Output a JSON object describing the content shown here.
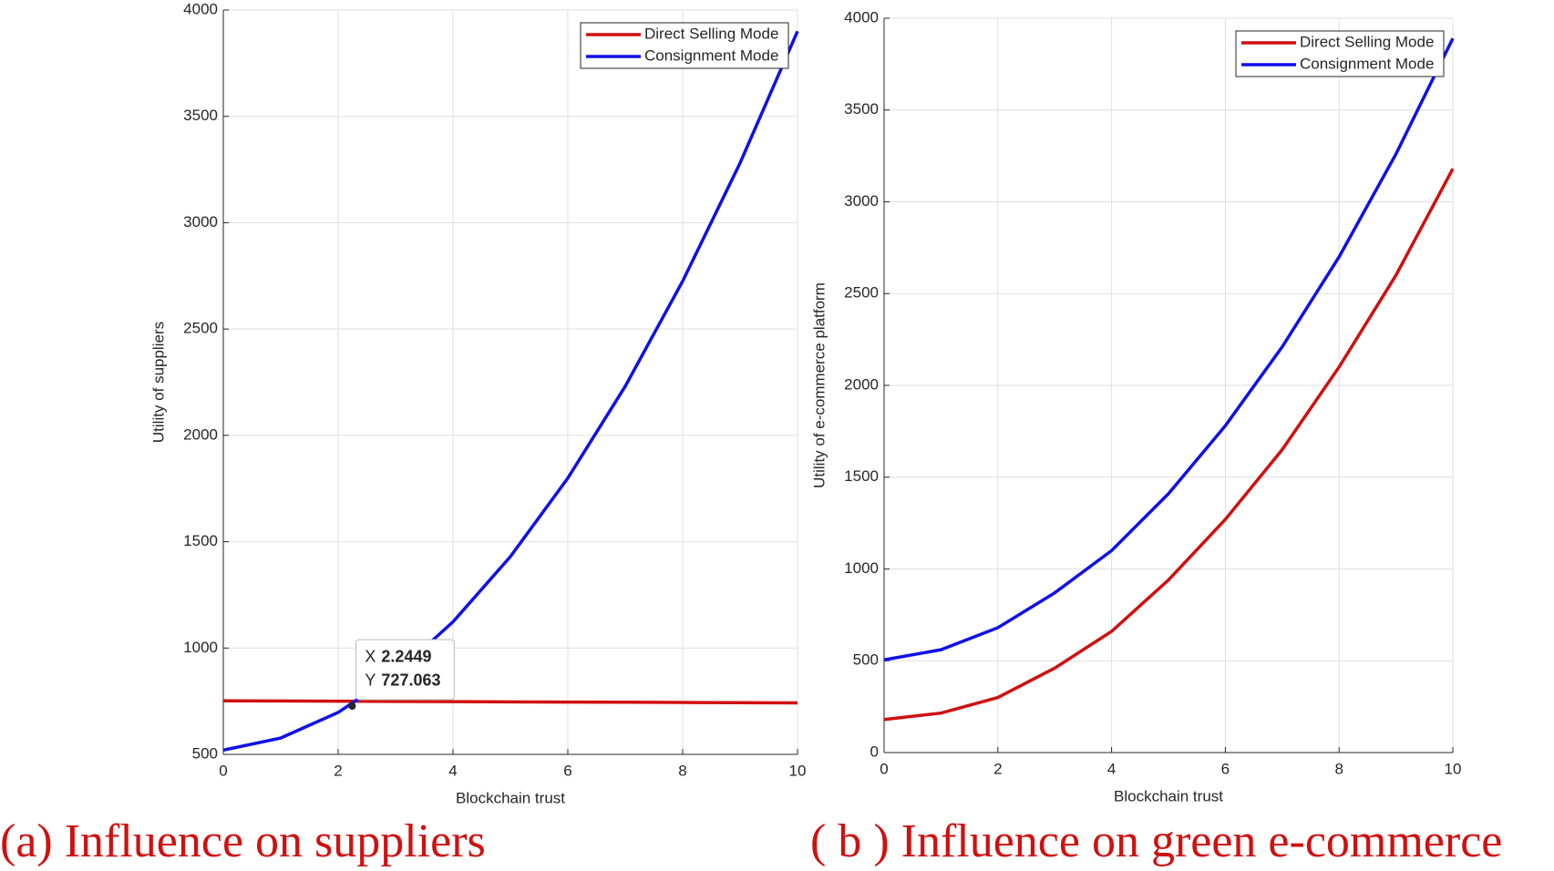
{
  "chart_data": [
    {
      "type": "line",
      "caption": "(a) Influence on suppliers",
      "xlabel": "Blockchain trust",
      "ylabel": "Utility of suppliers",
      "x": [
        0,
        1,
        2,
        3,
        4,
        5,
        6,
        7,
        8,
        9,
        10
      ],
      "series": [
        {
          "name": "Direct Selling Mode",
          "color": "#d01010",
          "values": [
            752,
            751,
            750,
            749,
            748,
            747,
            746,
            745,
            744,
            743,
            742
          ]
        },
        {
          "name": "Consignment Mode",
          "color": "#1010e8",
          "values": [
            520,
            577,
            697,
            879,
            1123,
            1430,
            1799,
            2231,
            2725,
            3281,
            3900
          ]
        }
      ],
      "xlim": [
        0,
        10
      ],
      "xticks": [
        0,
        2,
        4,
        6,
        8,
        10
      ],
      "ylim": [
        500,
        4000
      ],
      "yticks": [
        500,
        1000,
        1500,
        2000,
        2500,
        3000,
        3500,
        4000
      ],
      "grid": true,
      "legend": "upper right",
      "annotation": {
        "x_label": "X",
        "y_label": "Y",
        "x": 2.2449,
        "y": 727.063
      }
    },
    {
      "type": "line",
      "caption": "( b ) Influence on green e-commerce",
      "xlabel": "Blockchain trust",
      "ylabel": "Utility of e-commerce platform",
      "x": [
        0,
        1,
        2,
        3,
        4,
        5,
        6,
        7,
        8,
        9,
        10
      ],
      "series": [
        {
          "name": "Direct Selling Mode",
          "color": "#d01010",
          "values": [
            180,
            215,
            300,
            460,
            660,
            940,
            1270,
            1650,
            2100,
            2600,
            3180
          ]
        },
        {
          "name": "Consignment Mode",
          "color": "#1010e8",
          "values": [
            505,
            560,
            680,
            870,
            1100,
            1410,
            1780,
            2210,
            2700,
            3260,
            3890
          ]
        }
      ],
      "xlim": [
        0,
        10
      ],
      "xticks": [
        0,
        2,
        4,
        6,
        8,
        10
      ],
      "ylim": [
        0,
        4000
      ],
      "yticks": [
        0,
        500,
        1000,
        1500,
        2000,
        2500,
        3000,
        3500,
        4000
      ],
      "grid": true,
      "legend": "upper right"
    }
  ]
}
